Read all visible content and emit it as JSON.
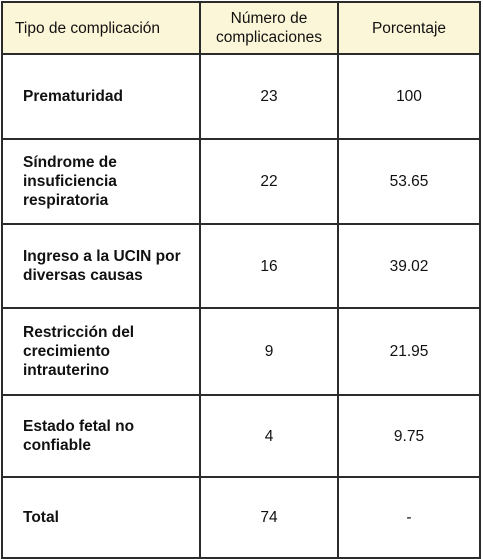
{
  "table": {
    "headers": {
      "type": "Tipo de complicación",
      "count": "Número de complicaciones",
      "percent": "Porcentaje"
    },
    "rows": [
      {
        "type": "Prematuridad",
        "count": "23",
        "percent": "100"
      },
      {
        "type": "Síndrome de insuficiencia respiratoria",
        "count": "22",
        "percent": "53.65"
      },
      {
        "type": "Ingreso a la UCIN por diversas causas",
        "count": "16",
        "percent": "39.02"
      },
      {
        "type": "Restricción del crecimiento intrauterino",
        "count": "9",
        "percent": "21.95"
      },
      {
        "type": "Estado fetal no confiable",
        "count": "4",
        "percent": "9.75"
      },
      {
        "type": "Total",
        "count": "74",
        "percent": "-"
      }
    ]
  },
  "colors": {
    "header_background": "#fbf6d8",
    "border": "#2b2b2b"
  }
}
